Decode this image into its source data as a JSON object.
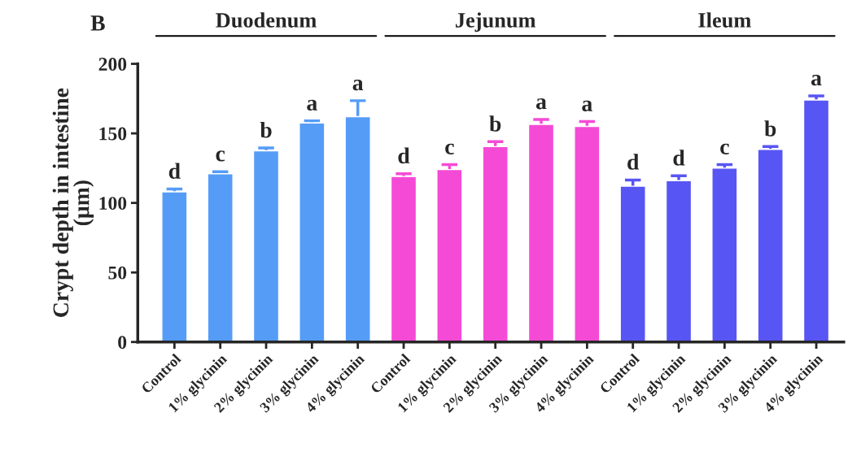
{
  "chart_data": {
    "type": "bar",
    "ylabel": "Crypt depth in intestine\n(μm)",
    "categories": [
      "Control",
      "1% glycinin",
      "2% glycinin",
      "3% glycinin",
      "4% glycinin",
      "Control",
      "1% glycinin",
      "2% glycinin",
      "3% glycinin",
      "4% glycinin",
      "Control",
      "1% glycinin",
      "2% glycinin",
      "3% glycinin",
      "4% glycinin"
    ],
    "series": [
      {
        "color": "#559cf7",
        "values": [
          108,
          121,
          137.5,
          157.5,
          162,
          null,
          null,
          null,
          null,
          null,
          null,
          null,
          null,
          null,
          null
        ],
        "errors": [
          2,
          1.5,
          2,
          1.5,
          11.5,
          null,
          null,
          null,
          null,
          null,
          null,
          null,
          null,
          null,
          null
        ],
        "value_labels": [
          "d",
          "c",
          "b",
          "a",
          "a",
          null,
          null,
          null,
          null,
          null,
          null,
          null,
          null,
          null,
          null
        ]
      },
      {
        "color": "#f54ad6",
        "values": [
          null,
          null,
          null,
          null,
          null,
          119,
          124,
          140.5,
          156.5,
          155,
          null,
          null,
          null,
          null,
          null
        ],
        "errors": [
          null,
          null,
          null,
          null,
          null,
          2,
          3.5,
          3.5,
          3.5,
          3.5,
          null,
          null,
          null,
          null,
          null
        ],
        "value_labels": [
          null,
          null,
          null,
          null,
          null,
          "d",
          "c",
          "b",
          "a",
          "a",
          null,
          null,
          null,
          null,
          null
        ]
      },
      {
        "color": "#5855f5",
        "values": [
          null,
          null,
          null,
          null,
          null,
          null,
          null,
          null,
          null,
          null,
          112,
          116,
          125,
          138.5,
          174
        ],
        "errors": [
          null,
          null,
          null,
          null,
          null,
          null,
          null,
          null,
          null,
          null,
          4.5,
          3.5,
          2.5,
          2,
          3
        ],
        "value_labels": [
          null,
          null,
          null,
          null,
          null,
          null,
          null,
          null,
          null,
          null,
          "d",
          "d",
          "c",
          "b",
          "a"
        ]
      }
    ],
    "annotations": [
      "B",
      "Duodenum",
      "Jejunum",
      "Ileum"
    ],
    "ylim": [
      0,
      200
    ],
    "yticks": [
      0,
      50,
      100,
      150,
      200
    ],
    "grid": false
  }
}
